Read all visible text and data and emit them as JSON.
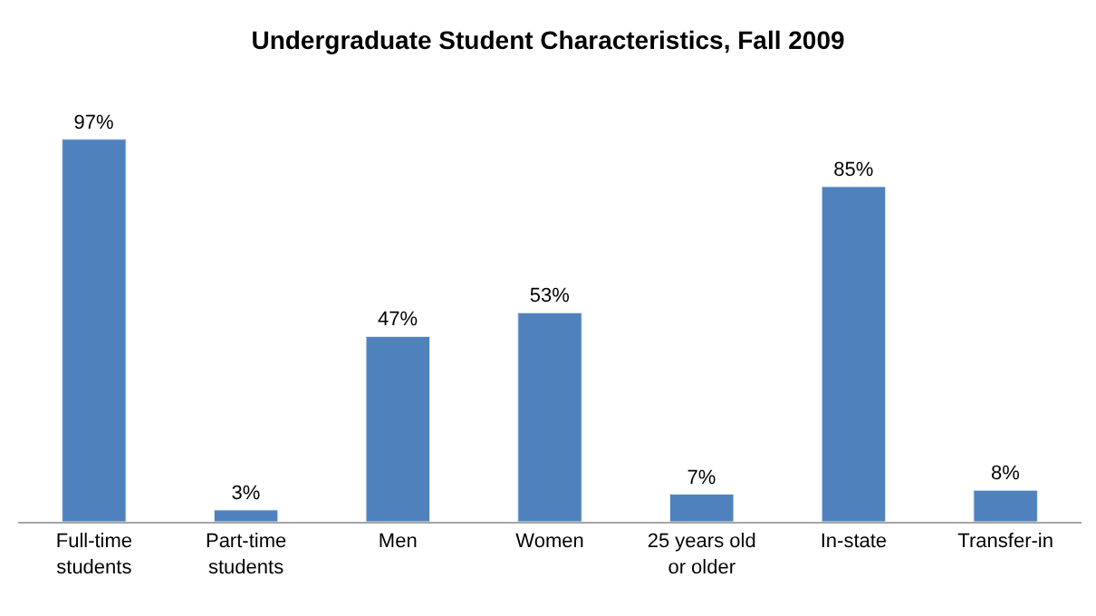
{
  "chart_data": {
    "type": "bar",
    "title": "Undergraduate Student Characteristics, Fall 2009",
    "categories": [
      "Full-time students",
      "Part-time students",
      "Men",
      "Women",
      "25 years old or older",
      "In-state",
      "Transfer-in"
    ],
    "values": [
      97,
      3,
      47,
      53,
      7,
      85,
      8
    ],
    "value_labels": [
      "97%",
      "3%",
      "47%",
      "53%",
      "7%",
      "85%",
      "8%"
    ],
    "color": "#4f81bd"
  }
}
